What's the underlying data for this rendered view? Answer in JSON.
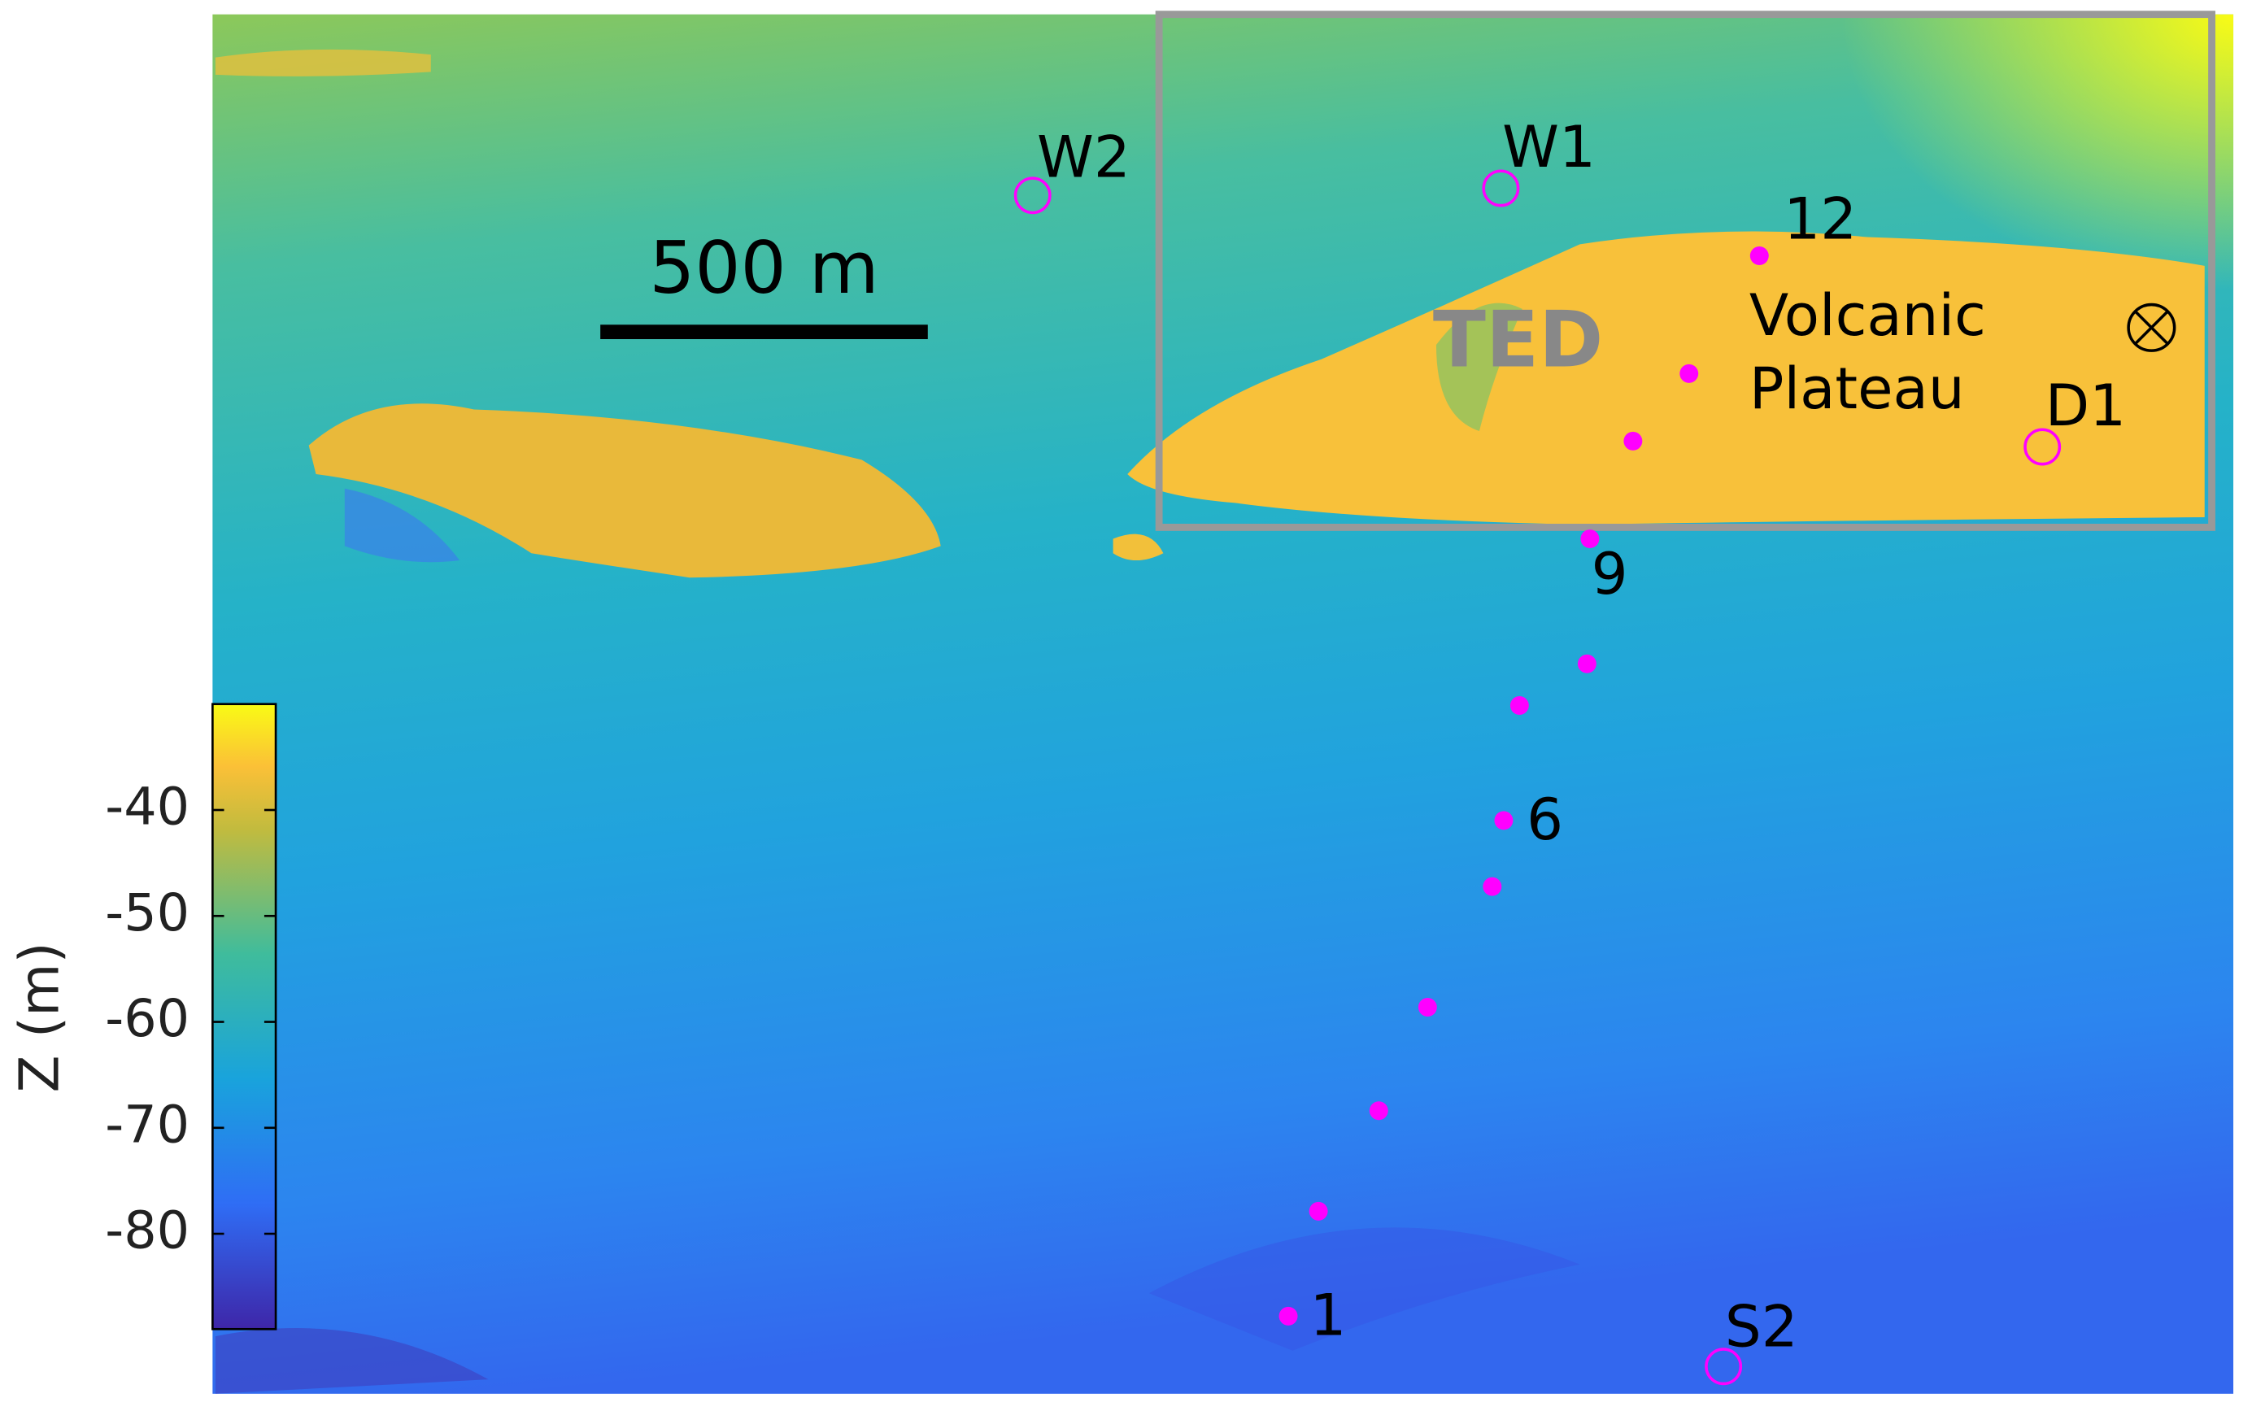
{
  "map": {
    "scale_bar": "500 m",
    "region_label": "TED",
    "plateau_label": [
      "Volcanic",
      "Plateau"
    ],
    "sites": [
      {
        "label": "W2"
      },
      {
        "label": "W1"
      },
      {
        "label": "D1"
      },
      {
        "label": "S2"
      }
    ],
    "stations": [
      "1",
      "6",
      "9",
      "12"
    ]
  },
  "colorbar": {
    "label": "Z (m)",
    "lim": [
      -89,
      -30
    ],
    "ticks": [
      -40,
      -50,
      -60,
      -70,
      -80
    ]
  }
}
